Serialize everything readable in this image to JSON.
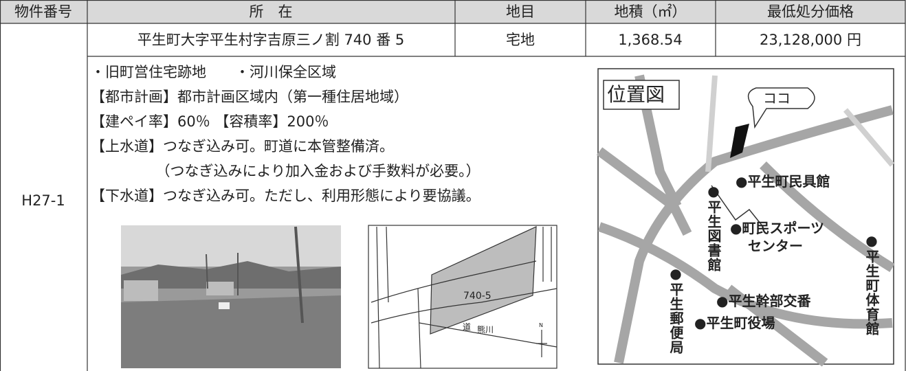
{
  "table": {
    "header": [
      "物件番号",
      "所　在",
      "地目",
      "地積（㎡）",
      "最低処分価格"
    ],
    "rows": [
      {
        "id": "H27-1",
        "location": "平生町大字平生村字吉原三ノ割 740 番 5",
        "land_type": "宅地",
        "area": "1,368.54",
        "price": "23,128,000 円"
      }
    ]
  },
  "details": [
    "・旧町営住宅跡地　　・河川保全区域",
    "【都市計画】都市計画区域内（第一種住居地域）",
    "【建ペイ率】60％ 【容積率】200％",
    "【上水道】つなぎ込み可。町道に本管整備済。",
    "　　　　　（つなぎ込みにより加入金および手数料が必要。）",
    "【下水道】つなぎ込み可。ただし、利用形態により要協議。"
  ],
  "plat_map": {
    "lot": "740-5",
    "road": "道",
    "river": "熊川",
    "north": "N"
  },
  "location_map": {
    "title": "位置図",
    "marker": "ココ",
    "places": [
      "●平生町民具館",
      "●町民スポーツ",
      "センター",
      "●平生図書館",
      "●平生郵便局",
      "●平生幹部交番",
      "●平生町役場",
      "●平生町体育館"
    ]
  }
}
